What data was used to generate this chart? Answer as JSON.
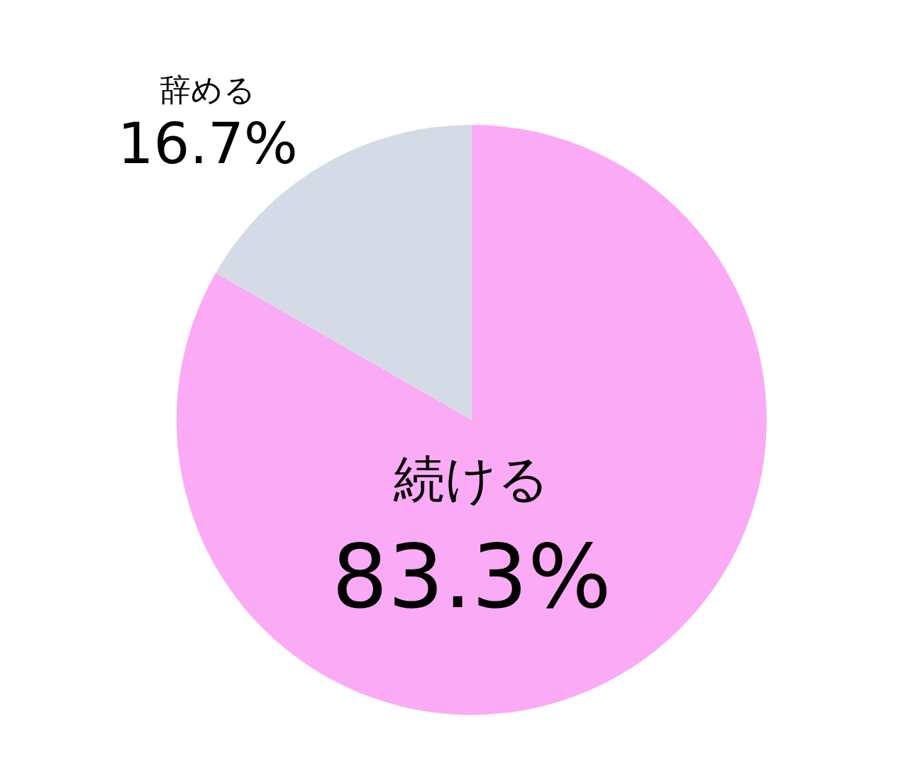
{
  "chart_data": {
    "type": "pie",
    "categories": [
      "続ける",
      "辞める"
    ],
    "values": [
      83.3,
      16.7
    ],
    "colors": [
      "#fbaaf5",
      "#d5dbe6"
    ],
    "value_labels": [
      "83.3%",
      "16.7%"
    ],
    "legend": false
  }
}
